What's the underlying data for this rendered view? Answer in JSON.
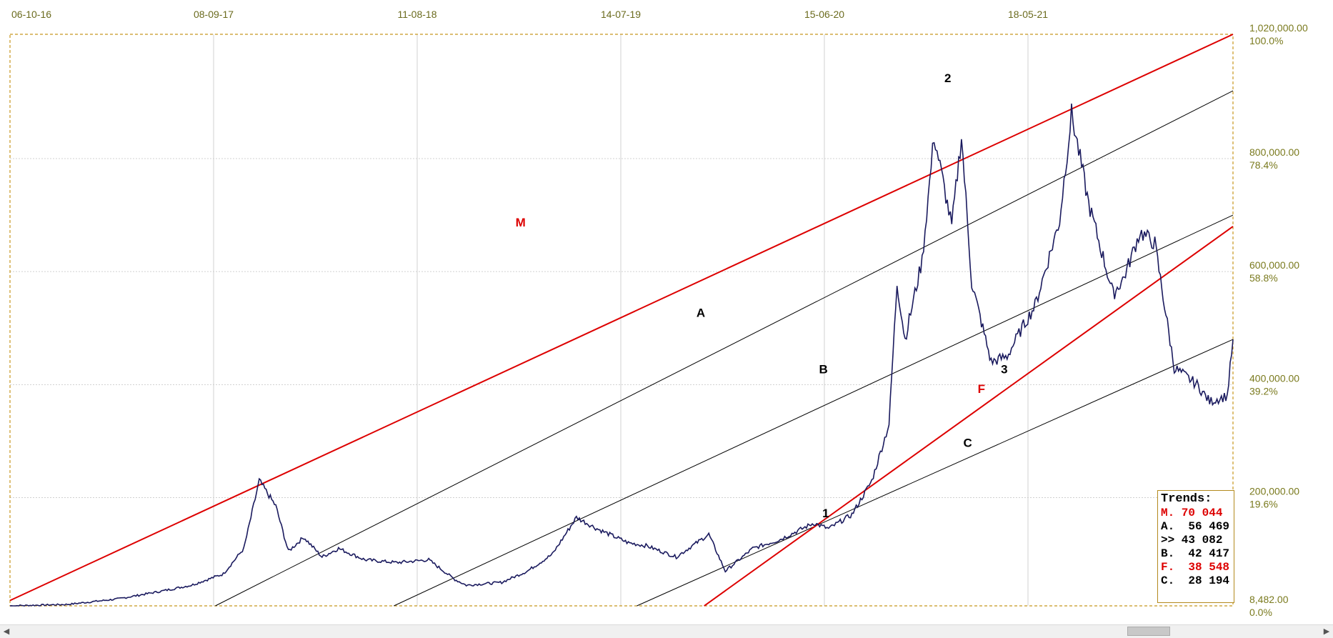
{
  "chart_data": {
    "type": "line",
    "title": "",
    "xlabel": "",
    "ylabel": "",
    "x_ticks": [
      "06-10-16",
      "08-09-17",
      "11-08-18",
      "14-07-19",
      "15-06-20",
      "18-05-21"
    ],
    "y_ticks": [
      "1,020,000.00",
      "800,000.00",
      "600,000.00",
      "400,000.00",
      "200,000.00",
      "8,482.00"
    ],
    "y_tick_values": [
      1020000,
      800000,
      600000,
      400000,
      200000,
      8482
    ],
    "y_pct_ticks": [
      "100.0%",
      "78.4%",
      "58.8%",
      "39.2%",
      "19.6%",
      "0.0%"
    ],
    "ylim": [
      8482,
      1020000
    ],
    "xlim": [
      "2016-10-06",
      "2022-08-20"
    ],
    "grid": true,
    "series": [
      {
        "color": "#1a1a5e",
        "x": [
          "2016-10-06",
          "2017-01-15",
          "2017-04-15",
          "2017-07-01",
          "2017-08-20",
          "2017-10-15",
          "2017-11-20",
          "2017-12-17",
          "2018-01-15",
          "2018-02-06",
          "2018-03-05",
          "2018-04-06",
          "2018-05-05",
          "2018-06-20",
          "2018-08-15",
          "2018-10-10",
          "2018-11-25",
          "2018-12-15",
          "2019-02-15",
          "2019-04-01",
          "2019-05-15",
          "2019-06-26",
          "2019-08-01",
          "2019-09-25",
          "2019-10-26",
          "2019-12-18",
          "2020-02-13",
          "2020-03-13",
          "2020-04-30",
          "2020-06-15",
          "2020-08-15",
          "2020-09-10",
          "2020-10-21",
          "2020-11-25",
          "2020-12-25",
          "2021-01-08",
          "2021-01-22",
          "2021-02-21",
          "2021-03-14",
          "2021-04-14",
          "2021-05-01",
          "2021-05-19",
          "2021-06-22",
          "2021-07-20",
          "2021-08-15",
          "2021-09-07",
          "2021-10-20",
          "2021-11-10",
          "2021-12-10",
          "2022-01-22",
          "2022-02-10",
          "2022-03-10",
          "2022-04-05",
          "2022-05-09",
          "2022-06-18",
          "2022-07-10",
          "2022-08-10",
          "2022-08-20"
        ],
        "values": [
          8482,
          11000,
          21000,
          35000,
          45000,
          65000,
          110000,
          230000,
          185000,
          105000,
          130000,
          95000,
          110000,
          90000,
          85000,
          90000,
          55000,
          45000,
          50000,
          70000,
          100000,
          165000,
          145000,
          120000,
          115000,
          95000,
          135000,
          70000,
          110000,
          125000,
          155000,
          145000,
          170000,
          230000,
          330000,
          580000,
          480000,
          620000,
          840000,
          680000,
          840000,
          580000,
          440000,
          450000,
          500000,
          540000,
          690000,
          880000,
          720000,
          560000,
          590000,
          670000,
          650000,
          430000,
          400000,
          370000,
          380000,
          480000
        ]
      }
    ],
    "trend_lines": [
      {
        "label": "M",
        "color": "#dd0000",
        "width": 2,
        "x0": "2016-10-06",
        "y0": 18000,
        "x1": "2022-08-20",
        "y1": 1020000
      },
      {
        "label": "A",
        "color": "#000000",
        "width": 1,
        "x0": "2017-10-01",
        "y0": 8482,
        "x1": "2022-08-20",
        "y1": 920000
      },
      {
        "label": "B",
        "color": "#000000",
        "width": 1,
        "x0": "2018-08-10",
        "y0": 8482,
        "x1": "2022-08-20",
        "y1": 700000
      },
      {
        "label": "C",
        "color": "#000000",
        "width": 1,
        "x0": "2019-10-10",
        "y0": 8482,
        "x1": "2022-08-20",
        "y1": 480000
      },
      {
        "label": "F",
        "color": "#dd0000",
        "width": 2,
        "x0": "2020-02-05",
        "y0": 8482,
        "x1": "2022-08-20",
        "y1": 680000
      }
    ],
    "annotations": [
      {
        "text": "M",
        "color": "#dd0000",
        "x": "2019-03-20",
        "y": 680000
      },
      {
        "text": "A",
        "color": "#000000",
        "x": "2020-01-30",
        "y": 520000
      },
      {
        "text": "B",
        "color": "#000000",
        "x": "2020-09-01",
        "y": 420000
      },
      {
        "text": "F",
        "color": "#dd0000",
        "x": "2021-06-05",
        "y": 385000
      },
      {
        "text": "C",
        "color": "#000000",
        "x": "2021-05-12",
        "y": 290000
      },
      {
        "text": "1",
        "color": "#000000",
        "x": "2020-09-05",
        "y": 165000
      },
      {
        "text": "2",
        "color": "#000000",
        "x": "2021-04-07",
        "y": 935000
      },
      {
        "text": "3",
        "color": "#000000",
        "x": "2021-07-15",
        "y": 420000
      }
    ],
    "legend": {
      "placement": "bottom-right",
      "title": "Trends:",
      "entries": [
        {
          "label": "M. 70 044",
          "color": "#dd0000"
        },
        {
          "label": "A.  56 469",
          "color": "#000000"
        },
        {
          "label": ">> 43 082",
          "color": "#000000"
        },
        {
          "label": "B.  42 417",
          "color": "#000000"
        },
        {
          "label": "F.  38 548",
          "color": "#dd0000"
        },
        {
          "label": "C.  28 194",
          "color": "#000000"
        }
      ]
    }
  }
}
